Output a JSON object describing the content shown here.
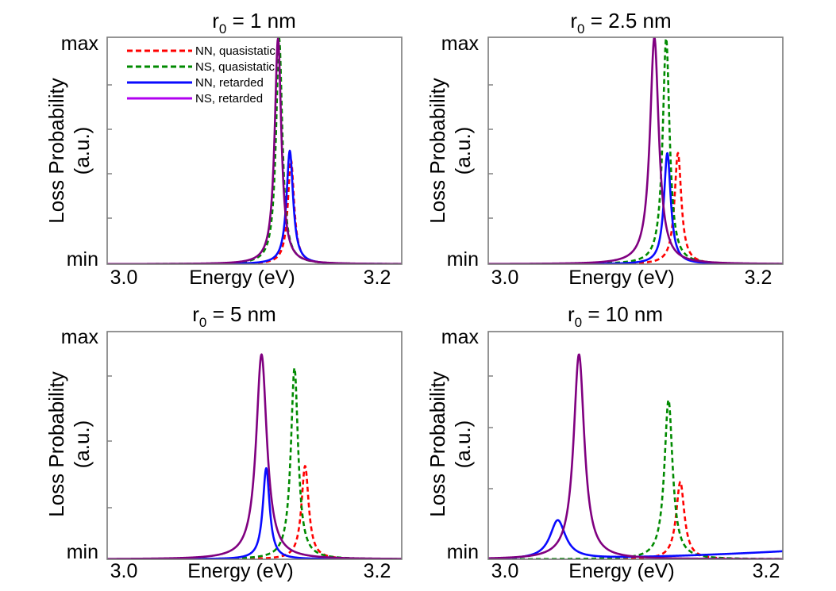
{
  "colors": {
    "nn_quasistatic": "#ff0000",
    "ns_quasistatic": "#008a00",
    "nn_retarded": "#0a0aff",
    "ns_retarded": "#800080",
    "legend_ns_retarded": "#b000f0"
  },
  "legend": {
    "placement": "top-left of first panel",
    "entries": [
      {
        "label": "NN, quasistatic",
        "color": "#ff0000",
        "dash": true
      },
      {
        "label": "NS, quasistatic",
        "color": "#008a00",
        "dash": true
      },
      {
        "label": "NN, retarded",
        "color": "#0a0aff",
        "dash": false
      },
      {
        "label": "NS, retarded",
        "color": "#b000f0",
        "dash": false
      }
    ]
  },
  "chart_data": [
    {
      "type": "line",
      "title_main": "r",
      "title_sub": "0",
      "title_rest": " = 1 nm",
      "xlabel": "Energy (eV)",
      "ylabel_line1": "Loss Probability",
      "ylabel_line2": "(a.u.)",
      "xlim": [
        2.985,
        3.235
      ],
      "ylim": [
        0,
        1
      ],
      "xtick_labels": [
        "3.0",
        "3.2"
      ],
      "ytick_labels": [
        "min",
        "max"
      ],
      "series": [
        {
          "name": "NN, quasistatic",
          "peak_x": 3.141,
          "peak_y": 0.46,
          "width": 0.0032,
          "dashed": true
        },
        {
          "name": "NS, quasistatic",
          "peak_x": 3.131,
          "peak_y": 0.995,
          "width": 0.0032,
          "dashed": true
        },
        {
          "name": "NN, retarded",
          "peak_x": 3.14,
          "peak_y": 0.5,
          "width": 0.0034,
          "dashed": false
        },
        {
          "name": "NS, retarded",
          "peak_x": 3.13,
          "peak_y": 0.995,
          "width": 0.0034,
          "dashed": false
        }
      ]
    },
    {
      "type": "line",
      "title_main": "r",
      "title_sub": "0",
      "title_rest": " = 2.5 nm",
      "xlabel": "Energy (eV)",
      "ylabel_line1": "Loss Probability",
      "ylabel_line2": "(a.u.)",
      "xlim": [
        2.985,
        3.235
      ],
      "ylim": [
        0,
        1
      ],
      "xtick_labels": [
        "3.0",
        "3.2"
      ],
      "ytick_labels": [
        "min",
        "max"
      ],
      "series": [
        {
          "name": "NN, quasistatic",
          "peak_x": 3.146,
          "peak_y": 0.49,
          "width": 0.0035,
          "dashed": true
        },
        {
          "name": "NS, quasistatic",
          "peak_x": 3.136,
          "peak_y": 0.995,
          "width": 0.0035,
          "dashed": true
        },
        {
          "name": "NN, retarded",
          "peak_x": 3.137,
          "peak_y": 0.49,
          "width": 0.0035,
          "dashed": false
        },
        {
          "name": "NS, retarded",
          "peak_x": 3.126,
          "peak_y": 1.0,
          "width": 0.0045,
          "dashed": false
        }
      ]
    },
    {
      "type": "line",
      "title_main": "r",
      "title_sub": "0",
      "title_rest": " = 5 nm",
      "xlabel": "Energy (eV)",
      "ylabel_line1": "Loss Probability",
      "ylabel_line2": "(a.u.)",
      "xlim": [
        2.985,
        3.235
      ],
      "ylim": [
        0,
        1
      ],
      "xtick_labels": [
        "3.0",
        "3.2"
      ],
      "ytick_labels": [
        "min",
        "max"
      ],
      "series": [
        {
          "name": "NN, quasistatic",
          "peak_x": 3.153,
          "peak_y": 0.41,
          "width": 0.0037,
          "dashed": true
        },
        {
          "name": "NS, quasistatic",
          "peak_x": 3.144,
          "peak_y": 0.84,
          "width": 0.0037,
          "dashed": true
        },
        {
          "name": "NN, retarded",
          "peak_x": 3.12,
          "peak_y": 0.4,
          "width": 0.0035,
          "dashed": false
        },
        {
          "name": "NS, retarded",
          "peak_x": 3.116,
          "peak_y": 0.9,
          "width": 0.0055,
          "dashed": false
        }
      ]
    },
    {
      "type": "line",
      "title_main": "r",
      "title_sub": "0",
      "title_rest": " = 10 nm",
      "xlabel": "Energy (eV)",
      "ylabel_line1": "Loss Probability",
      "ylabel_line2": "(a.u.)",
      "xlim": [
        2.985,
        3.235
      ],
      "ylim": [
        0,
        1
      ],
      "xtick_labels": [
        "3.0",
        "3.2"
      ],
      "ytick_labels": [
        "min",
        "max"
      ],
      "series": [
        {
          "name": "NN, quasistatic",
          "peak_x": 3.148,
          "peak_y": 0.34,
          "width": 0.0042,
          "dashed": true
        },
        {
          "name": "NS, quasistatic",
          "peak_x": 3.138,
          "peak_y": 0.7,
          "width": 0.0042,
          "dashed": true
        },
        {
          "name": "NN, retarded",
          "peak_x": 3.044,
          "peak_y": 0.17,
          "width": 0.008,
          "dashed": false,
          "baseline_end": 0.035
        },
        {
          "name": "NS, retarded",
          "peak_x": 3.062,
          "peak_y": 0.9,
          "width": 0.0055,
          "dashed": false
        }
      ]
    }
  ]
}
